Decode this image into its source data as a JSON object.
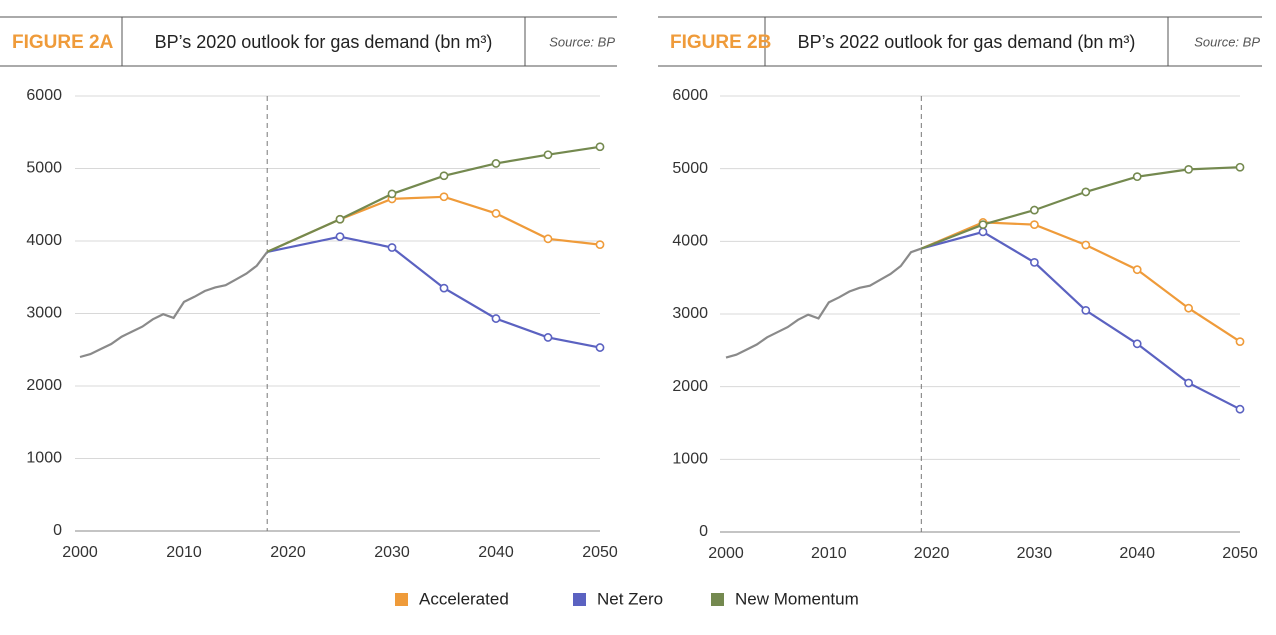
{
  "chart_data": [
    {
      "type": "line",
      "label": "FIGURE 2A",
      "title": "BP’s 2020 outlook for gas demand (bn m³)",
      "source": "Source: BP",
      "xlim": [
        2000,
        2050
      ],
      "xticks": [
        2000,
        2010,
        2020,
        2030,
        2040,
        2050
      ],
      "ylim": [
        0,
        6000
      ],
      "yticks": [
        0,
        1000,
        2000,
        3000,
        4000,
        5000,
        6000
      ],
      "grid": true,
      "forecast_start": 2018,
      "series": [
        {
          "color": "#8a8a8a",
          "x": [
            2000,
            2001,
            2002,
            2003,
            2004,
            2005,
            2006,
            2007,
            2008,
            2009,
            2010,
            2011,
            2012,
            2013,
            2014,
            2015,
            2016,
            2017,
            2018
          ],
          "values": [
            2400,
            2440,
            2510,
            2580,
            2680,
            2750,
            2820,
            2920,
            2990,
            2940,
            3160,
            3230,
            3310,
            3360,
            3390,
            3470,
            3550,
            3660,
            3850
          ]
        },
        {
          "name": "Accelerated",
          "color": "#ef9b3a",
          "x": [
            2018,
            2025,
            2030,
            2035,
            2040,
            2045,
            2050
          ],
          "values": [
            3850,
            4300,
            4580,
            4610,
            4380,
            4030,
            3950
          ]
        },
        {
          "name": "Net Zero",
          "color": "#5b62c1",
          "x": [
            2018,
            2025,
            2030,
            2035,
            2040,
            2045,
            2050
          ],
          "values": [
            3850,
            4060,
            3910,
            3350,
            2930,
            2670,
            2530
          ]
        },
        {
          "name": "New Momentum",
          "color": "#74894f",
          "x": [
            2018,
            2025,
            2030,
            2035,
            2040,
            2045,
            2050
          ],
          "values": [
            3850,
            4300,
            4650,
            4900,
            5070,
            5190,
            5300
          ]
        }
      ]
    },
    {
      "type": "line",
      "label": "FIGURE 2B",
      "title": "BP’s 2022 outlook for gas demand (bn m³)",
      "source": "Source: BP",
      "xlim": [
        2000,
        2050
      ],
      "xticks": [
        2000,
        2010,
        2020,
        2030,
        2040,
        2050
      ],
      "ylim": [
        0,
        6000
      ],
      "yticks": [
        0,
        1000,
        2000,
        3000,
        4000,
        5000,
        6000
      ],
      "grid": true,
      "forecast_start": 2019,
      "series": [
        {
          "color": "#8a8a8a",
          "x": [
            2000,
            2001,
            2002,
            2003,
            2004,
            2005,
            2006,
            2007,
            2008,
            2009,
            2010,
            2011,
            2012,
            2013,
            2014,
            2015,
            2016,
            2017,
            2018,
            2019
          ],
          "values": [
            2400,
            2440,
            2510,
            2580,
            2680,
            2750,
            2820,
            2920,
            2990,
            2940,
            3160,
            3230,
            3310,
            3360,
            3390,
            3470,
            3550,
            3660,
            3850,
            3900
          ]
        },
        {
          "name": "Accelerated",
          "color": "#ef9b3a",
          "x": [
            2019,
            2025,
            2030,
            2035,
            2040,
            2045,
            2050
          ],
          "values": [
            3900,
            4260,
            4230,
            3950,
            3610,
            3080,
            2620
          ]
        },
        {
          "name": "Net Zero",
          "color": "#5b62c1",
          "x": [
            2019,
            2025,
            2030,
            2035,
            2040,
            2045,
            2050
          ],
          "values": [
            3900,
            4130,
            3710,
            3050,
            2590,
            2050,
            1690
          ]
        },
        {
          "name": "New Momentum",
          "color": "#74894f",
          "x": [
            2019,
            2025,
            2030,
            2035,
            2040,
            2045,
            2050
          ],
          "values": [
            3900,
            4230,
            4430,
            4680,
            4890,
            4990,
            5020
          ]
        }
      ]
    }
  ]
}
